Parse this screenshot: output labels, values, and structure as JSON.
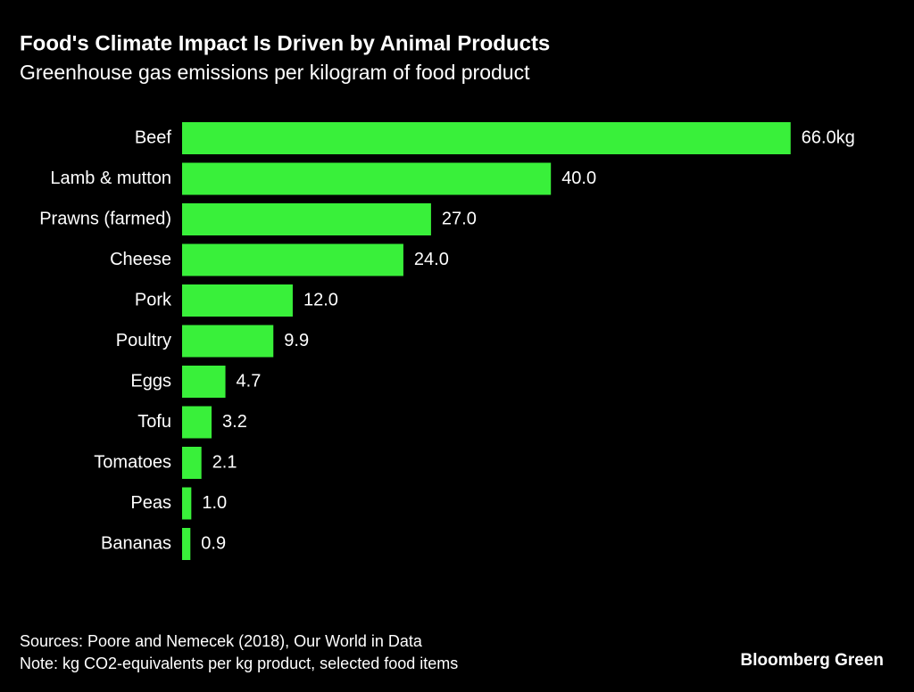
{
  "chart_data": {
    "type": "bar",
    "orientation": "horizontal",
    "title": "Food's Climate Impact Is Driven by Animal Products",
    "subtitle": "Greenhouse gas emissions per kilogram of food product",
    "categories": [
      "Beef",
      "Lamb & mutton",
      "Prawns (farmed)",
      "Cheese",
      "Pork",
      "Poultry",
      "Eggs",
      "Tofu",
      "Tomatoes",
      "Peas",
      "Bananas"
    ],
    "values": [
      66.0,
      40.0,
      27.0,
      24.0,
      12.0,
      9.9,
      4.7,
      3.2,
      2.1,
      1.0,
      0.9
    ],
    "value_labels": [
      "66.0kg",
      "40.0",
      "27.0",
      "24.0",
      "12.0",
      "9.9",
      "4.7",
      "3.2",
      "2.1",
      "1.0",
      "0.9"
    ],
    "color": "#39f03a",
    "sources": "Sources: Poore and Nemecek (2018), Our World in Data",
    "note": "Note: kg CO2-equivalents per kg product, selected food items",
    "brand": "Bloomberg Green"
  }
}
